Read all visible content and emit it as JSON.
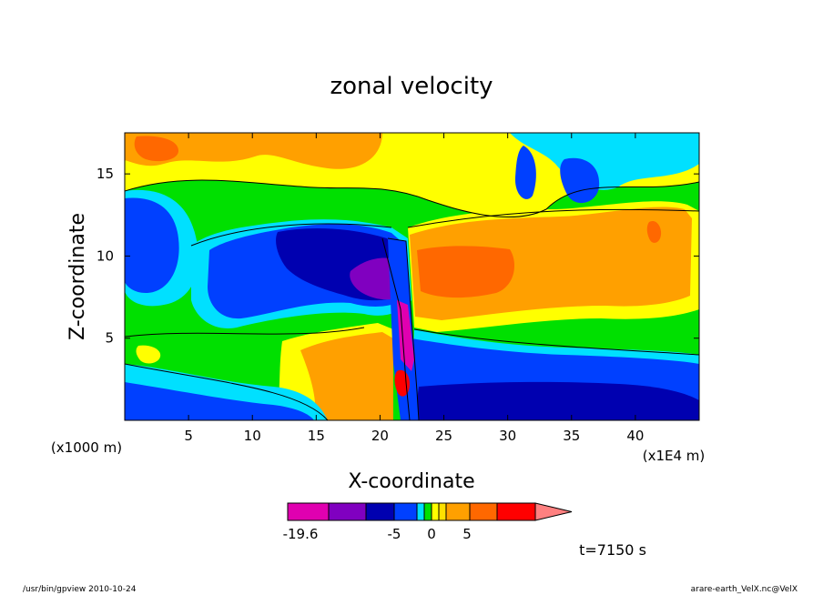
{
  "chart_data": {
    "type": "heatmap",
    "title": "zonal velocity",
    "xlabel": "X-coordinate",
    "ylabel": "Z-coordinate",
    "x_unit_left": "(x1000 m)",
    "x_unit_right": "(x1E4 m)",
    "xlim": [
      0,
      45
    ],
    "ylim": [
      0,
      17.5
    ],
    "x_ticks": [
      5,
      10,
      15,
      20,
      25,
      30,
      35,
      40
    ],
    "y_ticks": [
      5,
      10,
      15
    ],
    "colorbar": {
      "tick_labels": [
        "-19.6",
        "-5",
        "0",
        "5"
      ],
      "tick_values": [
        -19.6,
        -5,
        0,
        5
      ],
      "levels": [
        -19.6,
        -15,
        -10,
        -5,
        -3,
        -2,
        -1,
        0,
        1,
        2,
        5,
        8,
        12
      ],
      "colors": [
        "#e000b0",
        "#8000c0",
        "#0000b0",
        "#0040ff",
        "#00e0ff",
        "#00e000",
        "#ffff00",
        "#ffe000",
        "#ffa000",
        "#ff6800",
        "#ff0000",
        "#ff8080"
      ]
    },
    "field_description_points": [
      {
        "x": 3,
        "z": 10,
        "u": -4
      },
      {
        "x": 10,
        "z": 9,
        "u": -5
      },
      {
        "x": 15,
        "z": 10,
        "u": -8
      },
      {
        "x": 19.5,
        "z": 9,
        "u": -12
      },
      {
        "x": 22.5,
        "z": 5,
        "u": -18
      },
      {
        "x": 28,
        "z": 2,
        "u": -6
      },
      {
        "x": 38,
        "z": 2,
        "u": -5
      },
      {
        "x": 27,
        "z": 9,
        "u": 5
      },
      {
        "x": 41,
        "z": 11,
        "u": 3
      },
      {
        "x": 20,
        "z": 4,
        "u": 3
      },
      {
        "x": 2,
        "z": 15,
        "u": 1
      },
      {
        "x": 35,
        "z": 16,
        "u": -3
      }
    ],
    "grid": false,
    "legend": "bottom"
  },
  "time_label": "t=7150 s",
  "footer": {
    "left": "/usr/bin/gpview  2010-10-24",
    "right": "arare-earth_VelX.nc@VelX"
  },
  "colors": {
    "frame": "#000000",
    "background": "#ffffff"
  }
}
